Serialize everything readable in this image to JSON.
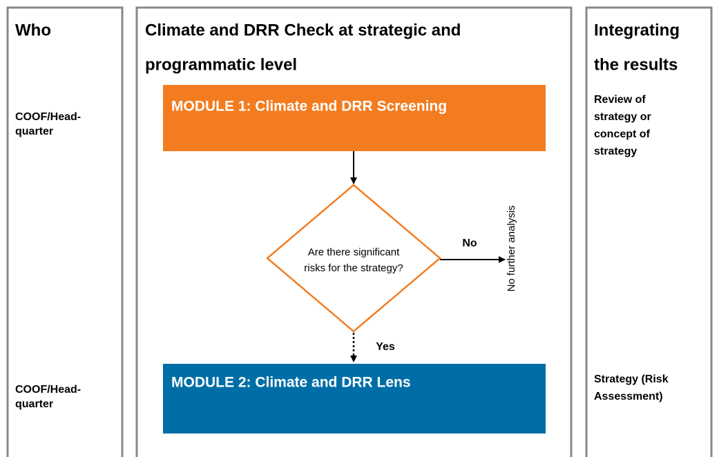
{
  "columns": [
    {
      "title": [
        "Who"
      ],
      "items": [
        [
          "COOF/Head-",
          "quarter"
        ],
        [
          "COOF/Head-",
          "quarter"
        ]
      ]
    },
    {
      "title": [
        "Climate and DRR Check at strategic and",
        "programmatic level"
      ]
    },
    {
      "title": [
        "Integrating",
        "the results"
      ],
      "items": [
        [
          "Review of",
          "strategy or",
          "concept of",
          "strategy"
        ],
        [
          "Strategy (Risk",
          "Assessment)"
        ]
      ]
    }
  ],
  "nodes": [
    {
      "label": "MODULE 1: Climate and DRR Screening"
    },
    {
      "label": [
        "Are there significant",
        "risks for the strategy?"
      ]
    },
    {
      "label": "MODULE 2: Climate and DRR Lens"
    }
  ],
  "edges": [
    {
      "label": "No",
      "target": "No further analysis"
    },
    {
      "label": "Yes"
    }
  ]
}
